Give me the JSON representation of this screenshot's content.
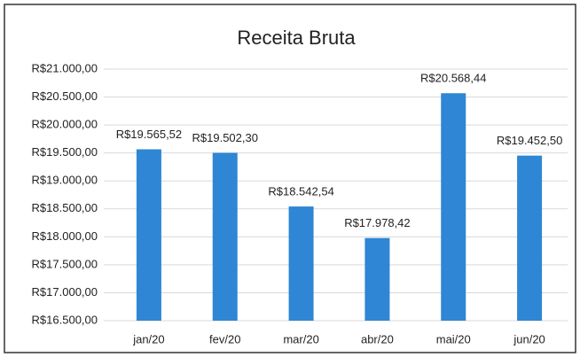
{
  "chart_data": {
    "type": "bar",
    "title": "Receita Bruta",
    "categories": [
      "jan/20",
      "fev/20",
      "mar/20",
      "abr/20",
      "mai/20",
      "jun/20"
    ],
    "values": [
      19565.52,
      19502.3,
      18542.54,
      17978.42,
      20568.44,
      19452.5
    ],
    "value_labels": [
      "R$19.565,52",
      "R$19.502,30",
      "R$18.542,54",
      "R$17.978,42",
      "R$20.568,44",
      "R$19.452,50"
    ],
    "color": "#2e86d4",
    "ylim": [
      16500,
      21000
    ],
    "yticks": [
      {
        "value": 16500,
        "label": "R$16.500,00"
      },
      {
        "value": 17000,
        "label": "R$17.000,00"
      },
      {
        "value": 17500,
        "label": "R$17.500,00"
      },
      {
        "value": 18000,
        "label": "R$18.000,00"
      },
      {
        "value": 18500,
        "label": "R$18.500,00"
      },
      {
        "value": 19000,
        "label": "R$19.000,00"
      },
      {
        "value": 19500,
        "label": "R$19.500,00"
      },
      {
        "value": 20000,
        "label": "R$20.000,00"
      },
      {
        "value": 20500,
        "label": "R$20.500,00"
      },
      {
        "value": 21000,
        "label": "R$21.000,00"
      }
    ],
    "grid": true
  }
}
